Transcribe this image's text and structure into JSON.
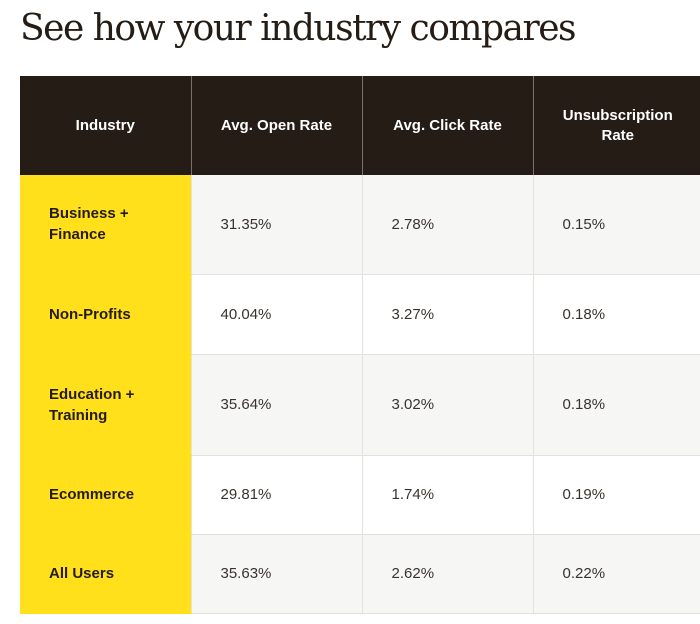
{
  "page": {
    "title": "See how your industry compares"
  },
  "table": {
    "headers": [
      "Industry",
      "Avg. Open Rate",
      "Avg. Click Rate",
      "Unsubscription Rate"
    ],
    "rows": [
      [
        "Business + Finance",
        "31.35%",
        "2.78%",
        "0.15%"
      ],
      [
        "Non-Profits",
        "40.04%",
        "3.27%",
        "0.18%"
      ],
      [
        "Education + Training",
        "35.64%",
        "3.02%",
        "0.18%"
      ],
      [
        "Ecommerce",
        "29.81%",
        "1.74%",
        "0.19%"
      ],
      [
        "All Users",
        "35.63%",
        "2.62%",
        "0.22%"
      ]
    ]
  },
  "colors": {
    "header_bg": "#241c15",
    "industry_highlight": "#ffe01b",
    "alt_row_bg": "#f6f6f4"
  }
}
